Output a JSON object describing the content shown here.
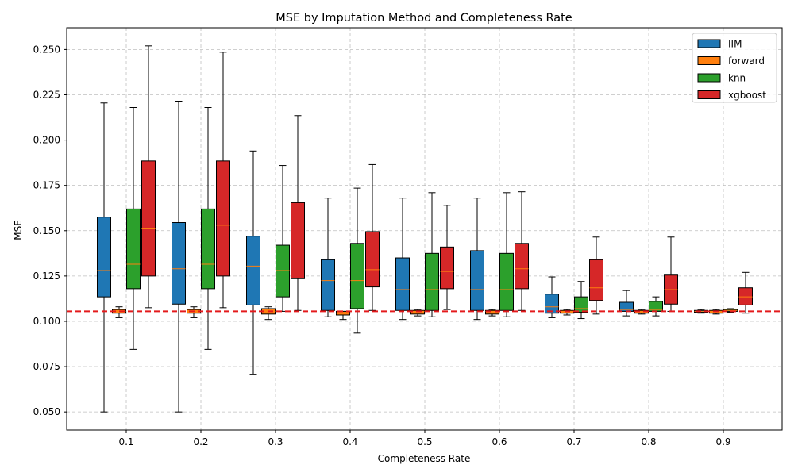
{
  "chart_data": {
    "type": "box",
    "title": "MSE by Imputation Method and Completeness Rate",
    "xlabel": "Completeness Rate",
    "ylabel": "MSE",
    "categories": [
      "0.1",
      "0.2",
      "0.3",
      "0.4",
      "0.5",
      "0.6",
      "0.7",
      "0.8",
      "0.9"
    ],
    "ylim": [
      0.04,
      0.262
    ],
    "yticks": [
      0.05,
      0.075,
      0.1,
      0.125,
      0.15,
      0.175,
      0.2,
      0.225,
      0.25
    ],
    "ytick_labels": [
      "0.050",
      "0.075",
      "0.100",
      "0.125",
      "0.150",
      "0.175",
      "0.200",
      "0.225",
      "0.250"
    ],
    "grid": true,
    "legend_position": "top-right",
    "reference_line": {
      "y": 0.1055,
      "color": "#e41a1c",
      "style": "dashed"
    },
    "series": [
      {
        "name": "IIM",
        "color": "#1f77b4",
        "boxes": [
          {
            "min": 0.05,
            "q1": 0.1135,
            "median": 0.128,
            "q3": 0.1575,
            "max": 0.2205
          },
          {
            "min": 0.05,
            "q1": 0.1095,
            "median": 0.129,
            "q3": 0.1545,
            "max": 0.2215
          },
          {
            "min": 0.0705,
            "q1": 0.109,
            "median": 0.1305,
            "q3": 0.147,
            "max": 0.194
          },
          {
            "min": 0.1025,
            "q1": 0.106,
            "median": 0.1225,
            "q3": 0.134,
            "max": 0.168
          },
          {
            "min": 0.101,
            "q1": 0.106,
            "median": 0.1175,
            "q3": 0.135,
            "max": 0.168
          },
          {
            "min": 0.101,
            "q1": 0.106,
            "median": 0.1175,
            "q3": 0.139,
            "max": 0.168
          },
          {
            "min": 0.102,
            "q1": 0.1045,
            "median": 0.108,
            "q3": 0.115,
            "max": 0.1245
          },
          {
            "min": 0.103,
            "q1": 0.1055,
            "median": 0.1065,
            "q3": 0.1105,
            "max": 0.117
          },
          {
            "min": 0.1045,
            "q1": 0.105,
            "median": 0.1055,
            "q3": 0.106,
            "max": 0.1065
          }
        ]
      },
      {
        "name": "forward",
        "color": "#ff7f0e",
        "boxes": [
          {
            "min": 0.102,
            "q1": 0.1045,
            "median": 0.1055,
            "q3": 0.1065,
            "max": 0.108
          },
          {
            "min": 0.102,
            "q1": 0.1045,
            "median": 0.1055,
            "q3": 0.1065,
            "max": 0.108
          },
          {
            "min": 0.101,
            "q1": 0.104,
            "median": 0.1055,
            "q3": 0.107,
            "max": 0.108
          },
          {
            "min": 0.101,
            "q1": 0.1035,
            "median": 0.1045,
            "q3": 0.1055,
            "max": 0.1055
          },
          {
            "min": 0.103,
            "q1": 0.104,
            "median": 0.1055,
            "q3": 0.106,
            "max": 0.1065
          },
          {
            "min": 0.103,
            "q1": 0.104,
            "median": 0.1055,
            "q3": 0.106,
            "max": 0.1065
          },
          {
            "min": 0.1035,
            "q1": 0.1045,
            "median": 0.1055,
            "q3": 0.106,
            "max": 0.1065
          },
          {
            "min": 0.104,
            "q1": 0.1045,
            "median": 0.1055,
            "q3": 0.106,
            "max": 0.1065
          },
          {
            "min": 0.104,
            "q1": 0.1045,
            "median": 0.1055,
            "q3": 0.106,
            "max": 0.1065
          }
        ]
      },
      {
        "name": "knn",
        "color": "#2ca02c",
        "boxes": [
          {
            "min": 0.0845,
            "q1": 0.118,
            "median": 0.1315,
            "q3": 0.162,
            "max": 0.218
          },
          {
            "min": 0.0845,
            "q1": 0.118,
            "median": 0.1315,
            "q3": 0.162,
            "max": 0.218
          },
          {
            "min": 0.1055,
            "q1": 0.1135,
            "median": 0.128,
            "q3": 0.142,
            "max": 0.186
          },
          {
            "min": 0.0935,
            "q1": 0.107,
            "median": 0.1225,
            "q3": 0.143,
            "max": 0.1735
          },
          {
            "min": 0.1025,
            "q1": 0.106,
            "median": 0.1175,
            "q3": 0.1375,
            "max": 0.171
          },
          {
            "min": 0.1025,
            "q1": 0.106,
            "median": 0.1175,
            "q3": 0.1375,
            "max": 0.171
          },
          {
            "min": 0.1015,
            "q1": 0.105,
            "median": 0.107,
            "q3": 0.1135,
            "max": 0.122
          },
          {
            "min": 0.103,
            "q1": 0.1055,
            "median": 0.1065,
            "q3": 0.111,
            "max": 0.1135
          },
          {
            "min": 0.105,
            "q1": 0.1055,
            "median": 0.106,
            "q3": 0.1065,
            "max": 0.107
          }
        ]
      },
      {
        "name": "xgboost",
        "color": "#d62728",
        "boxes": [
          {
            "min": 0.1075,
            "q1": 0.125,
            "median": 0.151,
            "q3": 0.1885,
            "max": 0.252
          },
          {
            "min": 0.1075,
            "q1": 0.125,
            "median": 0.153,
            "q3": 0.1885,
            "max": 0.2485
          },
          {
            "min": 0.106,
            "q1": 0.1235,
            "median": 0.1405,
            "q3": 0.1655,
            "max": 0.2135
          },
          {
            "min": 0.106,
            "q1": 0.119,
            "median": 0.1285,
            "q3": 0.1495,
            "max": 0.1865
          },
          {
            "min": 0.1065,
            "q1": 0.118,
            "median": 0.1275,
            "q3": 0.141,
            "max": 0.164
          },
          {
            "min": 0.106,
            "q1": 0.118,
            "median": 0.129,
            "q3": 0.143,
            "max": 0.1715
          },
          {
            "min": 0.104,
            "q1": 0.1115,
            "median": 0.1185,
            "q3": 0.134,
            "max": 0.1465
          },
          {
            "min": 0.1055,
            "q1": 0.1095,
            "median": 0.1175,
            "q3": 0.1255,
            "max": 0.1465
          },
          {
            "min": 0.1045,
            "q1": 0.109,
            "median": 0.1135,
            "q3": 0.1185,
            "max": 0.127
          }
        ]
      }
    ]
  }
}
